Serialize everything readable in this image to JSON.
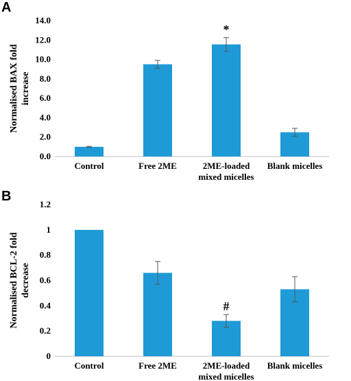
{
  "chart_data": [
    {
      "panel": "A",
      "type": "bar",
      "categories": [
        [
          "Control"
        ],
        [
          "Free 2ME"
        ],
        [
          "2ME-loaded",
          "mixed micelles"
        ],
        [
          "Blank micelles"
        ]
      ],
      "values": [
        1.0,
        9.5,
        11.55,
        2.5
      ],
      "errors": [
        0.05,
        0.4,
        0.7,
        0.4
      ],
      "annotations": [
        "",
        "",
        "*",
        ""
      ],
      "ylabel": [
        "Normalised BAX fold",
        "increase"
      ],
      "ylim": [
        0,
        14
      ],
      "yticks": [
        "0.0",
        "2.0",
        "4.0",
        "6.0",
        "8.0",
        "10.0",
        "12.0",
        "14.0"
      ],
      "color": "#1e9ad6"
    },
    {
      "panel": "B",
      "type": "bar",
      "categories": [
        [
          "Control"
        ],
        [
          "Free 2ME"
        ],
        [
          "2ME-loaded",
          "mixed micelles"
        ],
        [
          "Blank micelles"
        ]
      ],
      "values": [
        1.0,
        0.66,
        0.28,
        0.53
      ],
      "errors": [
        0.0,
        0.09,
        0.05,
        0.1
      ],
      "annotations": [
        "",
        "",
        "#",
        ""
      ],
      "ylabel": [
        "Normalised BCL-2 fold",
        "decrease"
      ],
      "ylim": [
        0,
        1.2
      ],
      "yticks": [
        "0",
        "0.2",
        "0.4",
        "0.6",
        "0.8",
        "1",
        "1.2"
      ],
      "color": "#1e9ad6"
    }
  ]
}
